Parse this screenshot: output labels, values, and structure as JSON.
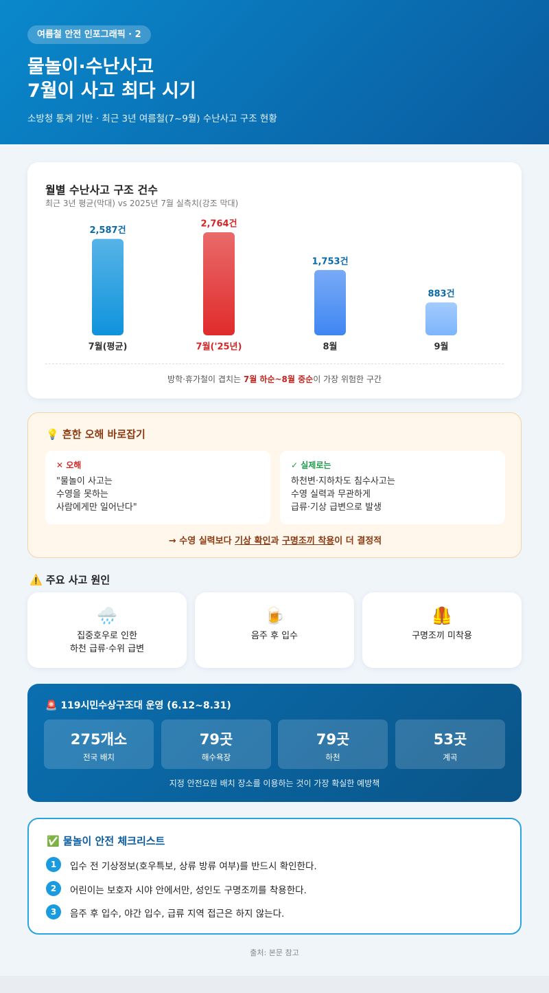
{
  "header": {
    "badge": "여름철 안전 인포그래픽 · 2",
    "title_lines": [
      "물놀이·수난사고",
      "7월이 사고 최다 시기"
    ],
    "subtitle": "소방청 통계 기반 · 최근 3년 여름철(7~9월) 수난사고 구조 현황"
  },
  "chart_data": {
    "type": "bar",
    "title": "월별 수난사고 구조 건수",
    "subtitle": "최근 3년 평균(막대) vs 2025년 7월 실측치(강조 막대)",
    "categories": [
      "7월(평균)",
      "7월('25년)",
      "8월",
      "9월"
    ],
    "values": [
      2587,
      2764,
      1753,
      883
    ],
    "value_labels": [
      "2,587건",
      "2,764건",
      "1,753건",
      "883건"
    ],
    "colors": [
      "#0f93dc",
      "#e02b2b",
      "#3f86f2",
      "#7db5fb"
    ],
    "label_colors": [
      "#0a6aa8",
      "#d32626",
      "#0a6aa8",
      "#0a6aa8"
    ],
    "category_colors": [
      "#333333",
      "#d32626",
      "#333333",
      "#333333"
    ],
    "note": [
      "방학·휴가철이 겹치는 ",
      "7월 하순~8월 중순",
      "이 가장 위험한 구간"
    ]
  },
  "myth": {
    "title": "흔한 오해 바로잡기",
    "wrong_label": "오해",
    "wrong_text": "\"물놀이 사고는\n수영을 못하는\n사람에게만 일어난다\"",
    "right_label": "실제로는",
    "right_text": "하천변·지하차도 침수사고는\n수영 실력과 무관하게\n급류·기상 급변으로 발생",
    "conclusion": [
      "→ 수영 실력보다 ",
      "기상 확인",
      "과 ",
      "구명조끼 착용",
      "이 더 결정적"
    ]
  },
  "causes": {
    "title": "주요 사고 원인",
    "items": [
      "집중호우로 인한\n하천 급류·수위 급변",
      "음주 후 입수",
      "구명조끼 미착용"
    ]
  },
  "rescue": {
    "title": "119시민수상구조대 운영 (6.12~8.31)",
    "stats": [
      {
        "value": "275개소",
        "label": "전국 배치"
      },
      {
        "value": "79곳",
        "label": "해수욕장"
      },
      {
        "value": "79곳",
        "label": "하천"
      },
      {
        "value": "53곳",
        "label": "계곡"
      }
    ],
    "note": "지정 안전요원 배치 장소를 이용하는 것이 가장 확실한 예방책"
  },
  "checklist": {
    "title": "물놀이 안전 체크리스트",
    "items": [
      {
        "number": 1,
        "text": "입수 전 기상정보(호우특보, 상류 방류 여부)를 반드시 확인한다."
      },
      {
        "number": 2,
        "text": "어린이는 보호자 시야 안에서만, 성인도 구명조끼를 착용한다."
      },
      {
        "number": 3,
        "text": "음주 후 입수, 야간 입수, 급류 지역 접근은 하지 않는다."
      }
    ]
  },
  "footer": "출처: 본문 참고"
}
